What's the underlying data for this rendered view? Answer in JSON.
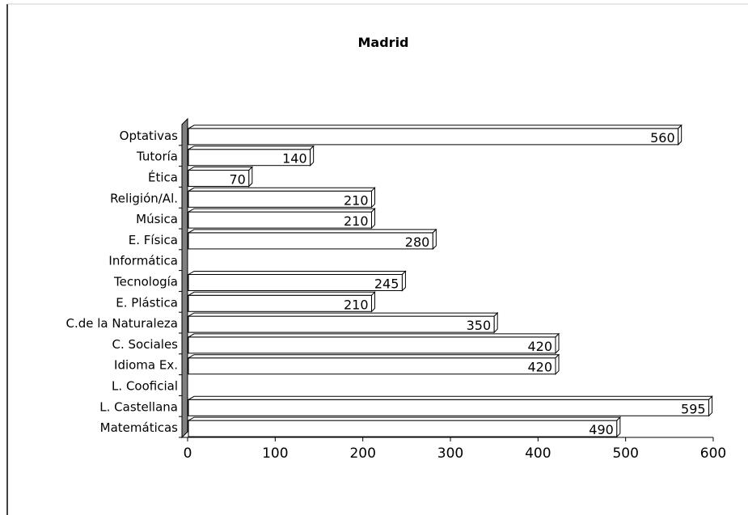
{
  "chart_data": {
    "type": "bar",
    "orientation": "horizontal",
    "title": "Madrid",
    "xlabel": "",
    "ylabel": "",
    "xlim": [
      0,
      600
    ],
    "xticks": [
      "0",
      "100",
      "200",
      "300",
      "400",
      "500",
      "600"
    ],
    "grid": false,
    "legend": "none",
    "categories": [
      "Matemáticas",
      "L. Castellana",
      "L. Cooficial",
      "Idioma Ex.",
      "C. Sociales",
      "C.de la Naturaleza",
      "E. Plástica",
      "Tecnología",
      "Informática",
      "E. Física",
      "Música",
      "Religión/Al.",
      "Ética",
      "Tutoría",
      "Optativas"
    ],
    "values": [
      490,
      595,
      null,
      420,
      420,
      350,
      210,
      245,
      null,
      280,
      210,
      210,
      70,
      140,
      560
    ],
    "value_labels": [
      "490",
      "595",
      "",
      "420",
      "420",
      "350",
      "210",
      "245",
      "",
      "280",
      "210",
      "210",
      "70",
      "140",
      "560"
    ],
    "colors": {
      "bar_face": "#ffffff",
      "bar_side": "#ffffff",
      "bar_edge": "#000000",
      "axis_wall": "#808080",
      "border": "#000000"
    }
  }
}
